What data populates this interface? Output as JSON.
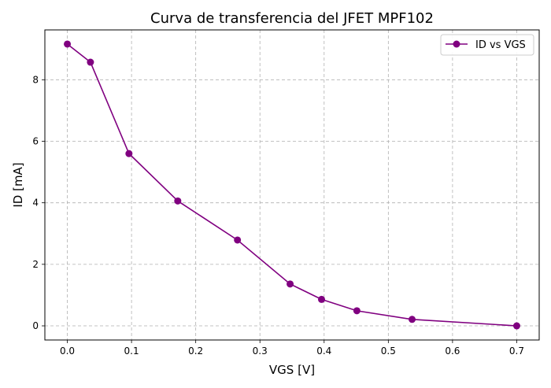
{
  "chart_data": {
    "type": "line",
    "title": "Curva de transferencia del JFET MPF102",
    "xlabel": "VGS [V]",
    "ylabel": "ID [mA]",
    "xlim": [
      -0.035,
      0.735
    ],
    "ylim": [
      -0.46,
      9.62
    ],
    "xticks": [
      0.0,
      0.1,
      0.2,
      0.3,
      0.4,
      0.5,
      0.6,
      0.7
    ],
    "xtick_labels": [
      "0.0",
      "0.1",
      "0.2",
      "0.3",
      "0.4",
      "0.5",
      "0.6",
      "0.7"
    ],
    "yticks": [
      0,
      2,
      4,
      6,
      8
    ],
    "ytick_labels": [
      "0",
      "2",
      "4",
      "6",
      "8"
    ],
    "grid": true,
    "legend_position": "top-right",
    "color": "#800080",
    "series": [
      {
        "name": "ID vs VGS",
        "x": [
          0.0,
          0.036,
          0.096,
          0.172,
          0.265,
          0.347,
          0.396,
          0.451,
          0.537,
          0.7
        ],
        "y": [
          9.16,
          8.57,
          5.6,
          4.06,
          2.79,
          1.36,
          0.86,
          0.49,
          0.21,
          0.0
        ]
      }
    ]
  }
}
